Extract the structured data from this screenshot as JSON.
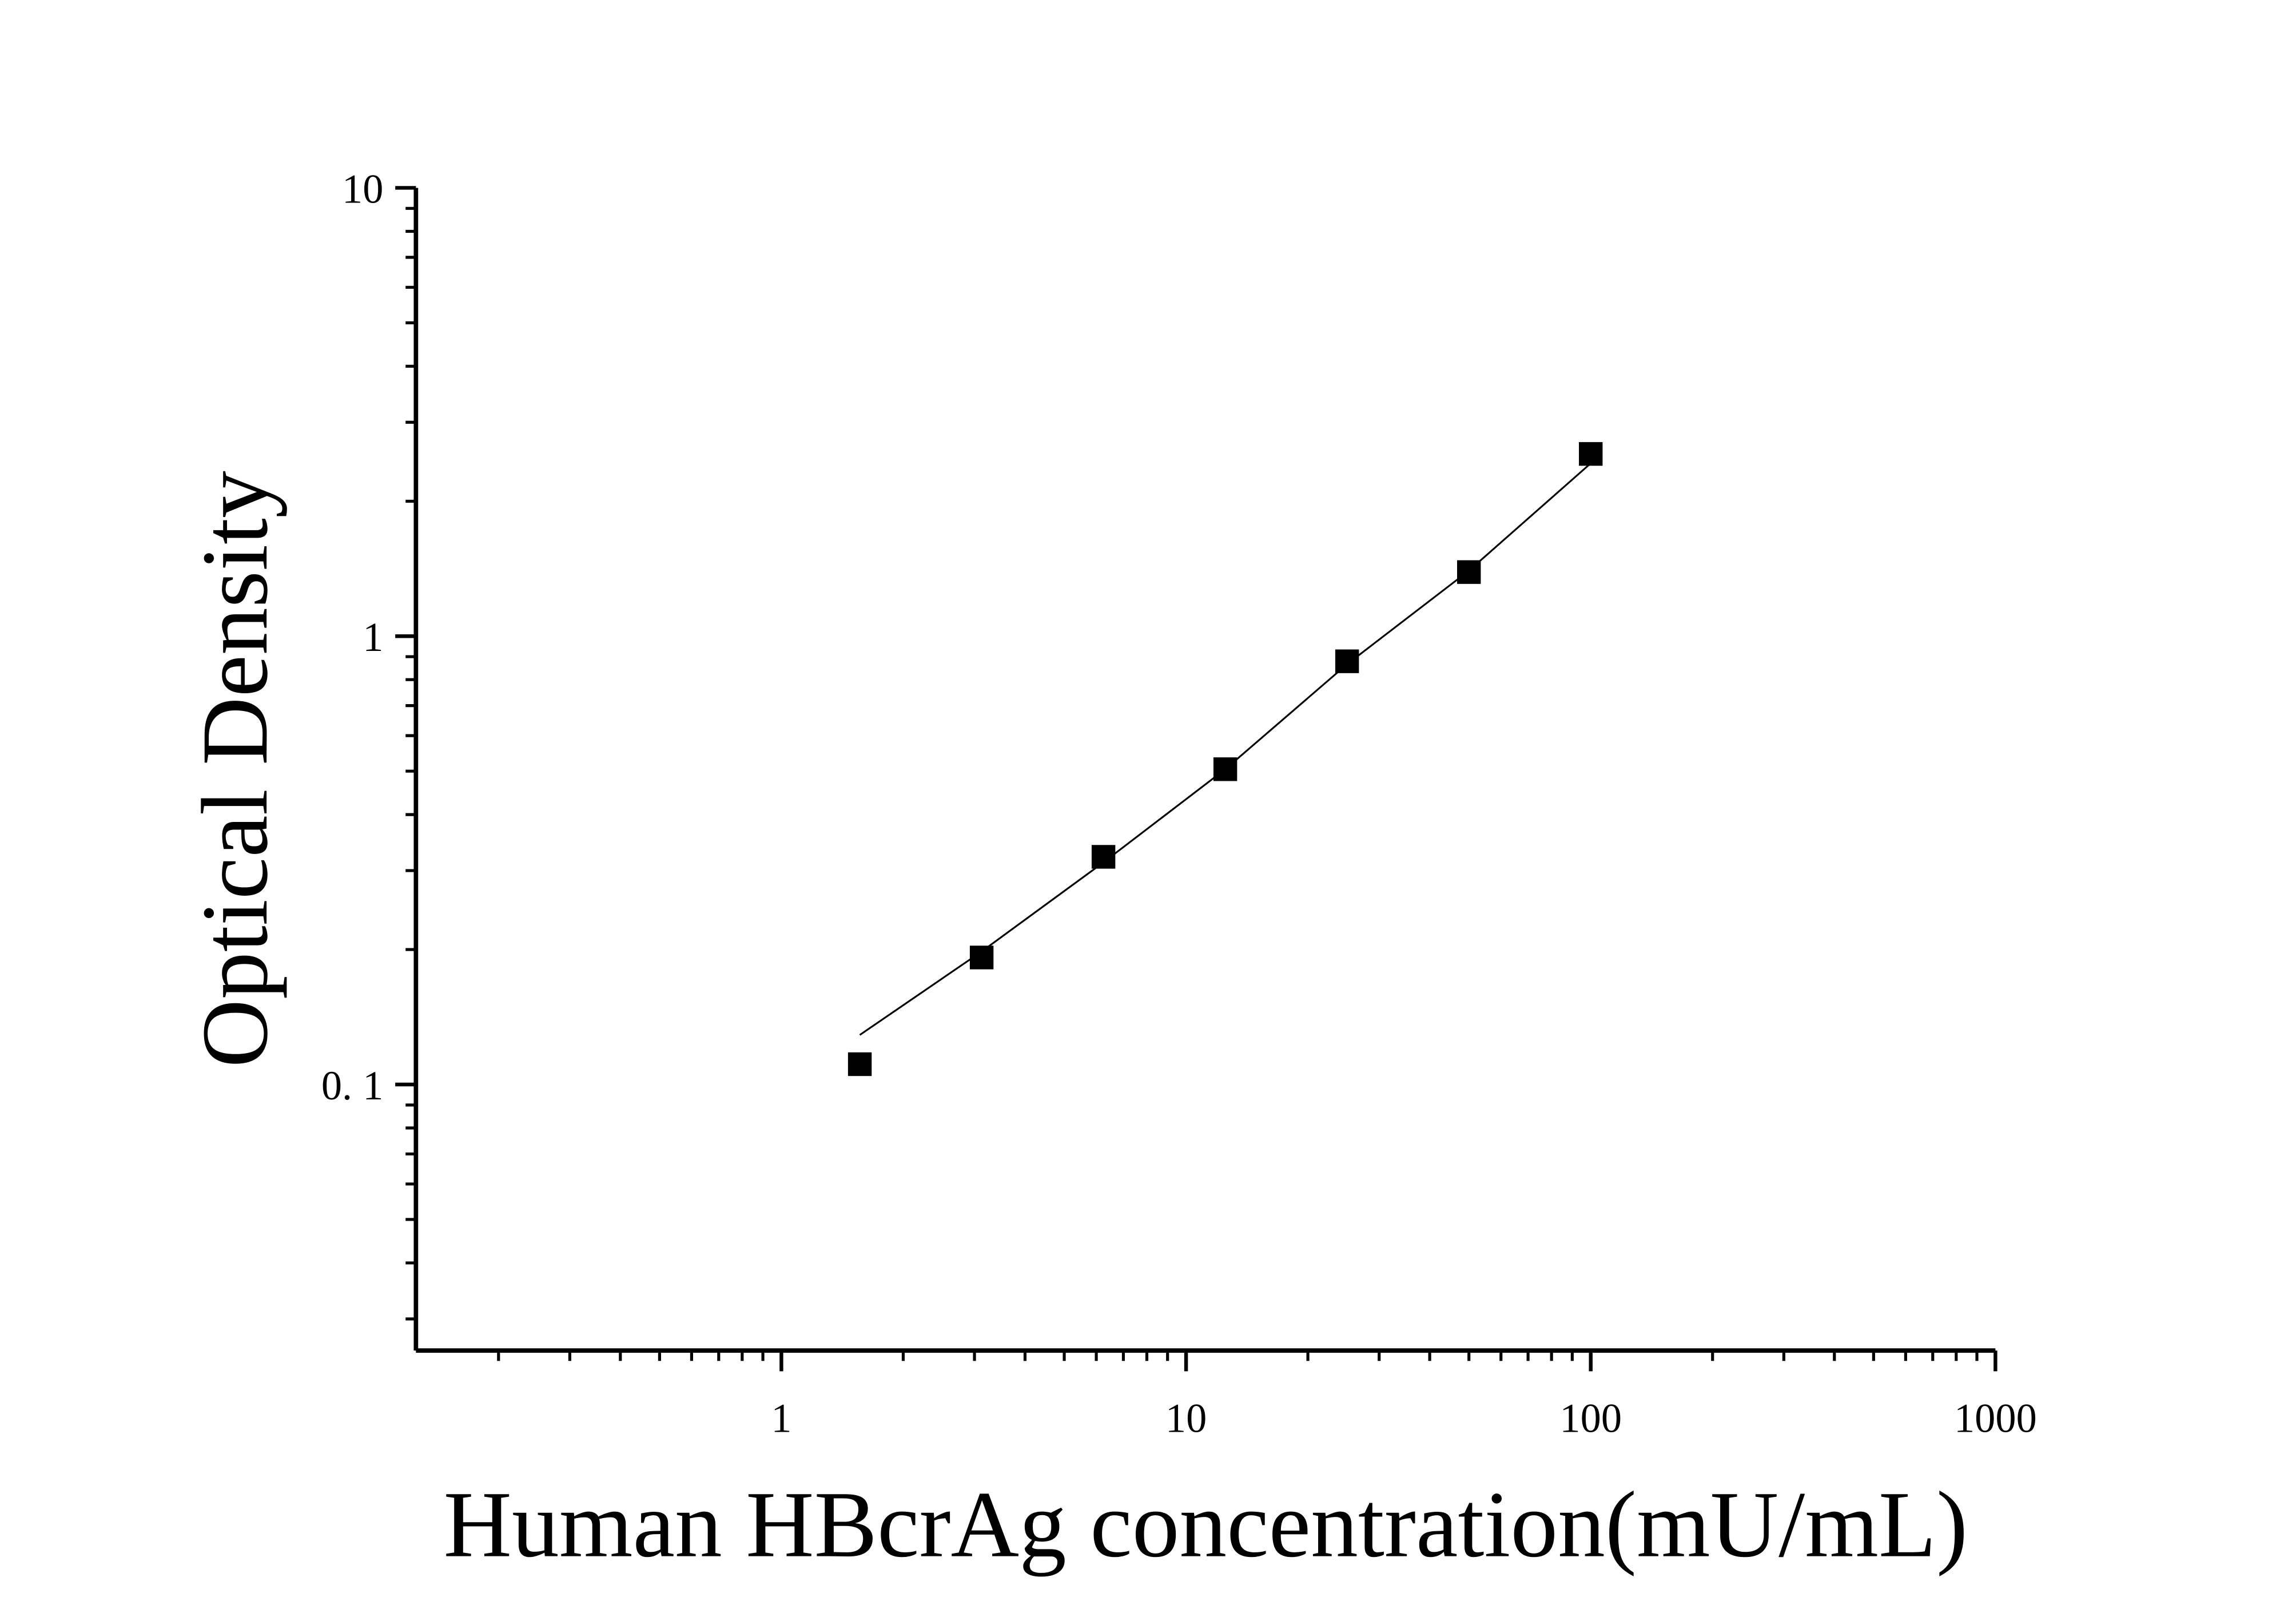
{
  "chart_data": {
    "type": "scatter",
    "xlabel": "Human HBcrAg concentration(mU/mL)",
    "ylabel": "Optical Density",
    "xscale": "log",
    "yscale": "log",
    "minor_ticks": true,
    "xlim": [
      0.125,
      1000
    ],
    "ylim": [
      0.0255,
      10
    ],
    "xticks": [
      1,
      10,
      100,
      1000
    ],
    "yticks": [
      {
        "value": 0.1,
        "label": "0. 1"
      },
      1,
      10
    ],
    "marker": "square",
    "color": "#000000",
    "x": [
      1.5625,
      3.125,
      6.25,
      12.5,
      25,
      50,
      100
    ],
    "values": [
      0.111,
      0.192,
      0.322,
      0.505,
      0.879,
      1.39,
      2.55
    ],
    "fit": {
      "x": [
        1.5625,
        3.125,
        6.25,
        12.5,
        25,
        50,
        100
      ],
      "values": [
        0.129,
        0.198,
        0.313,
        0.505,
        0.866,
        1.4,
        2.43
      ]
    }
  }
}
